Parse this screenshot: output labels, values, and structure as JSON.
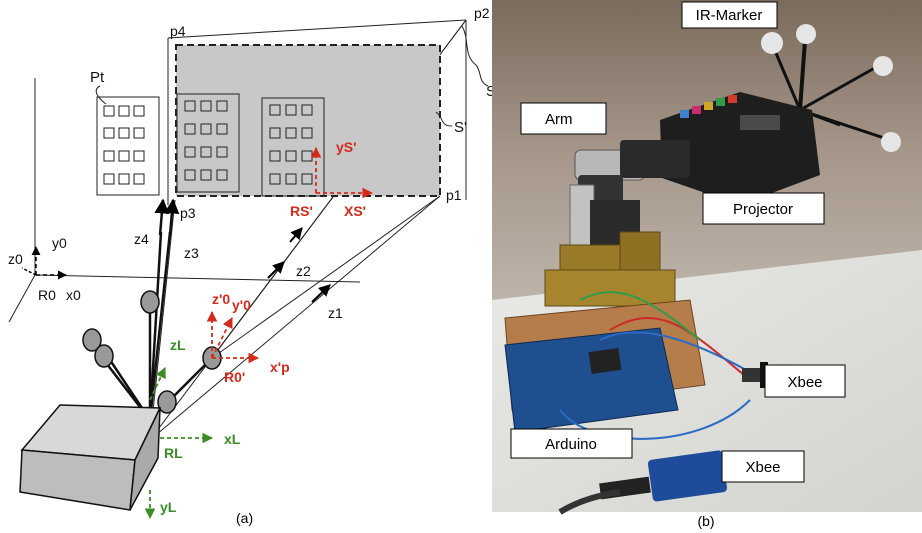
{
  "panel_a": {
    "caption": "(a)",
    "points": {
      "p1": "p1",
      "p2": "p2",
      "p3": "p3",
      "p4": "p4",
      "pt": "Pt"
    },
    "surfaces": {
      "s": "S",
      "s_prime": "S'"
    },
    "world_frame": {
      "origin": "R0",
      "x": "x0",
      "y": "y0",
      "z": "z0"
    },
    "projector_frame": {
      "origin": "R0'",
      "x": "x'p",
      "y": "y'0",
      "z": "z'0"
    },
    "screen_frame": {
      "origin": "RS'",
      "x": "XS'",
      "y": "yS'"
    },
    "arm_frame": {
      "origin": "RL",
      "x": "xL",
      "y": "yL",
      "z": "zL"
    },
    "rays": {
      "z1": "z1",
      "z2": "z2",
      "z3": "z3",
      "z4": "z4"
    },
    "colors": {
      "red": "#d42a1a",
      "green": "#3a8d24",
      "gray": "#c8c8c8"
    }
  },
  "panel_b": {
    "caption": "(b)",
    "callouts": {
      "ir_marker": "IR-Marker",
      "arm": "Arm",
      "projector": "Projector",
      "xbee_top": "Xbee",
      "arduino": "Arduino",
      "xbee_bottom": "Xbee"
    }
  }
}
